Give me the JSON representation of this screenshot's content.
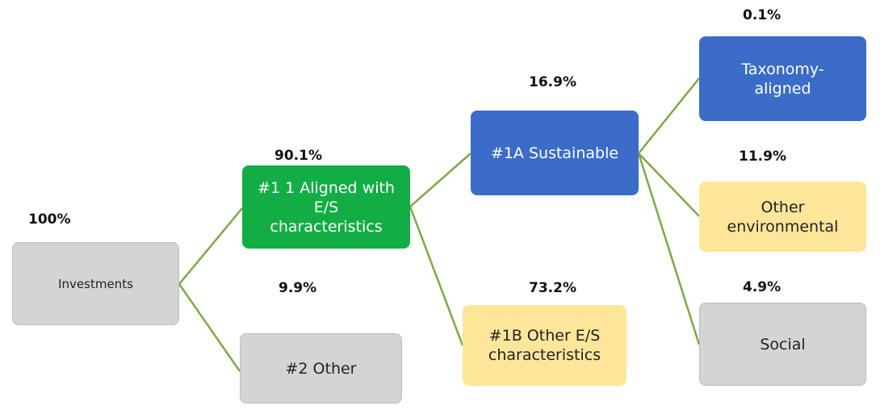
{
  "nodes": [
    {
      "lines": [
        "Investments"
      ],
      "percent": "100%"
    },
    {
      "lines": [
        "#1 1 Aligned with",
        "E/S",
        "characteristics"
      ],
      "percent": "90.1%"
    },
    {
      "lines": [
        "#2 Other"
      ],
      "percent": "9.9%"
    },
    {
      "lines": [
        "#1A Sustainable"
      ],
      "percent": "16.9%"
    },
    {
      "lines": [
        "#1B Other E/S",
        "characteristics"
      ],
      "percent": "73.2%"
    },
    {
      "lines": [
        "Taxonomy-",
        "aligned"
      ],
      "percent": "0.1%"
    },
    {
      "lines": [
        "Other",
        "environmental"
      ],
      "percent": "11.9%"
    },
    {
      "lines": [
        "Social"
      ],
      "percent": "4.9%"
    }
  ]
}
